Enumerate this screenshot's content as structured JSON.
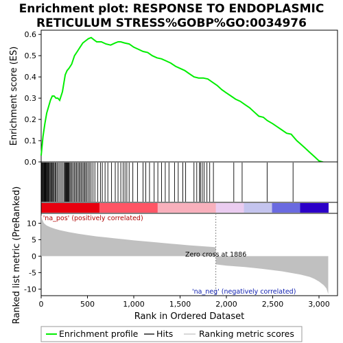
{
  "chart_data": {
    "type": "line",
    "title": "Enrichment plot: RESPONSE TO ENDOPLASMIC RETICULUM STRESS%GOBP%GO:0034976",
    "title_lines": [
      "Enrichment plot: RESPONSE TO ENDOPLASMIC",
      "RETICULUM STRESS%GOBP%GO:0034976"
    ],
    "xlabel": "Rank in Ordered Dataset",
    "xlim": [
      0,
      3200
    ],
    "x_ticks": [
      0,
      500,
      1000,
      1500,
      2000,
      2500,
      3000
    ],
    "x_tick_labels": [
      "0",
      "500",
      "1,000",
      "1,500",
      "2,000",
      "2,500",
      "3,000"
    ],
    "top_panel": {
      "ylabel": "Enrichment score (ES)",
      "ylim": [
        0,
        0.62
      ],
      "y_ticks": [
        0.0,
        0.1,
        0.2,
        0.3,
        0.4,
        0.5,
        0.6
      ],
      "y_tick_labels": [
        "0.0",
        "0.1",
        "0.2",
        "0.3",
        "0.4",
        "0.5",
        "0.6"
      ],
      "series": [
        {
          "name": "Enrichment profile",
          "color": "#00ee00",
          "x": [
            0,
            20,
            40,
            60,
            80,
            100,
            120,
            140,
            160,
            180,
            200,
            230,
            260,
            280,
            300,
            330,
            360,
            390,
            420,
            450,
            480,
            510,
            540,
            570,
            600,
            650,
            700,
            750,
            800,
            830,
            860,
            900,
            950,
            1000,
            1050,
            1100,
            1150,
            1200,
            1250,
            1300,
            1350,
            1400,
            1450,
            1500,
            1550,
            1600,
            1650,
            1700,
            1750,
            1800,
            1850,
            1900,
            1950,
            2000,
            2050,
            2100,
            2150,
            2200,
            2250,
            2300,
            2350,
            2400,
            2440,
            2500,
            2550,
            2600,
            2650,
            2700,
            2720,
            2760,
            2800,
            2850,
            2900,
            2950,
            3000,
            3050,
            3100
          ],
          "values": [
            0.03,
            0.12,
            0.18,
            0.23,
            0.26,
            0.29,
            0.31,
            0.31,
            0.3,
            0.3,
            0.29,
            0.33,
            0.41,
            0.43,
            0.44,
            0.46,
            0.5,
            0.52,
            0.54,
            0.56,
            0.57,
            0.58,
            0.585,
            0.575,
            0.565,
            0.565,
            0.555,
            0.55,
            0.56,
            0.565,
            0.565,
            0.56,
            0.555,
            0.54,
            0.53,
            0.52,
            0.515,
            0.5,
            0.49,
            0.485,
            0.475,
            0.465,
            0.45,
            0.44,
            0.43,
            0.415,
            0.4,
            0.395,
            0.395,
            0.39,
            0.375,
            0.36,
            0.34,
            0.325,
            0.31,
            0.295,
            0.285,
            0.27,
            0.255,
            0.235,
            0.215,
            0.21,
            0.195,
            0.18,
            0.165,
            0.15,
            0.135,
            0.13,
            0.12,
            0.1,
            0.085,
            0.065,
            0.045,
            0.025,
            0.005,
            -0.002,
            -0.002
          ]
        }
      ]
    },
    "hits": {
      "name": "Hits",
      "color": "#000000",
      "positions": [
        5,
        12,
        18,
        25,
        32,
        38,
        44,
        50,
        56,
        62,
        70,
        78,
        86,
        95,
        104,
        112,
        120,
        130,
        140,
        150,
        160,
        172,
        185,
        200,
        215,
        230,
        245,
        255,
        262,
        270,
        278,
        285,
        292,
        300,
        310,
        320,
        332,
        345,
        358,
        370,
        382,
        395,
        408,
        420,
        432,
        445,
        458,
        470,
        482,
        495,
        510,
        525,
        540,
        560,
        580,
        610,
        640,
        660,
        690,
        720,
        760,
        800,
        830,
        860,
        885,
        905,
        925,
        950,
        990,
        1040,
        1100,
        1130,
        1170,
        1220,
        1260,
        1300,
        1340,
        1380,
        1440,
        1480,
        1530,
        1560,
        1650,
        1680,
        1710,
        1720,
        1740,
        1760,
        1790,
        1820,
        1860,
        2080,
        2170,
        2440,
        2720
      ]
    },
    "gradient_bar": {
      "zero_cross_rank": 1886,
      "colors": [
        "#e8000f",
        "#ff5565",
        "#f8b0bc",
        "#eaccf0",
        "#c4c4ee",
        "#6a6ae0",
        "#2c00c8"
      ]
    },
    "bottom_panel": {
      "ylabel": "Ranked list metric (PreRanked)",
      "ylim": [
        -12,
        13
      ],
      "y_ticks": [
        -10,
        -5,
        0,
        5,
        10
      ],
      "y_tick_labels": [
        "-10",
        "-5",
        "0",
        "5",
        "10"
      ],
      "fill_color": "#c0c0c0",
      "x": [
        0,
        10,
        30,
        60,
        100,
        150,
        200,
        300,
        400,
        500,
        600,
        700,
        800,
        900,
        1000,
        1200,
        1400,
        1600,
        1800,
        1886,
        1887,
        2000,
        2200,
        2400,
        2600,
        2800,
        2900,
        2950,
        3000,
        3050,
        3080,
        3100
      ],
      "values": [
        12.5,
        11.2,
        10.0,
        9.3,
        8.8,
        8.3,
        7.9,
        7.3,
        6.8,
        6.4,
        6.0,
        5.7,
        5.4,
        5.1,
        4.8,
        4.3,
        3.8,
        3.3,
        2.9,
        2.7,
        -2.5,
        -2.9,
        -3.3,
        -3.9,
        -4.6,
        -5.6,
        -6.3,
        -6.9,
        -7.7,
        -8.8,
        -9.8,
        -11.5
      ],
      "annotations": {
        "pos": "'na_pos' (positively correlated)",
        "neg": "'na_neg' (negatively correlated)",
        "zero_cross": "Zero cross at 1886"
      }
    },
    "legend": {
      "placement": "bottom",
      "entries": [
        {
          "name": "Enrichment profile",
          "color": "#00ee00"
        },
        {
          "name": "Hits",
          "color": "#000000"
        },
        {
          "name": "Ranking metric scores",
          "color": "#c0c0c0"
        }
      ]
    }
  }
}
